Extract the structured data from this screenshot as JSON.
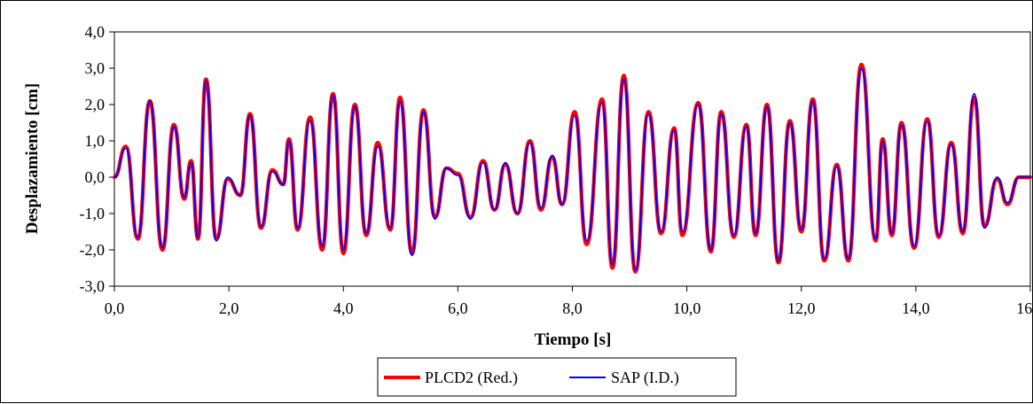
{
  "chart_data": {
    "type": "line",
    "xlabel": "Tiempo [s]",
    "ylabel": "Desplazamiento [cm]",
    "xlim": [
      0,
      16
    ],
    "ylim": [
      -3,
      4
    ],
    "x_ticks": [
      "0,0",
      "2,0",
      "4,0",
      "6,0",
      "8,0",
      "10,0",
      "12,0",
      "14,0",
      "16,0"
    ],
    "y_ticks": [
      "4,0",
      "3,0",
      "2,0",
      "1,0",
      "0,0",
      "-1,0",
      "-2,0",
      "-3,0"
    ],
    "grid": false,
    "legend_position": "bottom-center",
    "series": [
      {
        "name": "PLCD2 (Red.)",
        "color": "#ff0000",
        "x": [
          0.0,
          0.2,
          0.41,
          0.62,
          0.84,
          1.04,
          1.22,
          1.34,
          1.46,
          1.6,
          1.78,
          1.98,
          2.2,
          2.37,
          2.56,
          2.76,
          2.95,
          3.05,
          3.2,
          3.42,
          3.63,
          3.82,
          4.0,
          4.2,
          4.4,
          4.6,
          4.82,
          4.99,
          5.2,
          5.4,
          5.6,
          5.8,
          6.0,
          6.22,
          6.44,
          6.64,
          6.83,
          7.04,
          7.26,
          7.45,
          7.65,
          7.82,
          8.04,
          8.25,
          8.52,
          8.7,
          8.9,
          9.1,
          9.33,
          9.55,
          9.78,
          9.92,
          10.2,
          10.42,
          10.6,
          10.82,
          11.04,
          11.2,
          11.4,
          11.6,
          11.8,
          12.0,
          12.2,
          12.4,
          12.62,
          12.82,
          13.05,
          13.3,
          13.42,
          13.58,
          13.75,
          13.97,
          14.2,
          14.4,
          14.62,
          14.82,
          15.02,
          15.2,
          15.42,
          15.6,
          15.8,
          16.0
        ],
        "values": [
          0.0,
          0.85,
          -1.7,
          2.1,
          -2.0,
          1.45,
          -0.6,
          0.45,
          -1.7,
          2.7,
          -1.7,
          -0.05,
          -0.5,
          1.75,
          -1.4,
          0.2,
          -0.2,
          1.05,
          -1.45,
          1.65,
          -2.0,
          2.3,
          -2.1,
          2.0,
          -1.6,
          0.95,
          -1.45,
          2.2,
          -2.1,
          1.85,
          -1.1,
          0.25,
          0.1,
          -1.1,
          0.45,
          -0.9,
          0.35,
          -1.0,
          1.0,
          -0.9,
          0.55,
          -0.75,
          1.8,
          -1.85,
          2.15,
          -2.5,
          2.8,
          -2.6,
          1.8,
          -1.55,
          1.35,
          -1.6,
          2.05,
          -2.05,
          1.8,
          -1.65,
          1.45,
          -1.6,
          2.0,
          -2.35,
          1.55,
          -1.5,
          2.15,
          -2.3,
          0.35,
          -2.3,
          3.1,
          -1.75,
          1.05,
          -1.6,
          1.5,
          -1.95,
          1.6,
          -1.65,
          0.95,
          -1.55,
          2.2,
          -1.35,
          -0.05,
          -0.75,
          0.0,
          0.0
        ]
      },
      {
        "name": "SAP (I.D.)",
        "color": "#0000ff",
        "x": [
          0.0,
          0.2,
          0.41,
          0.62,
          0.84,
          1.04,
          1.22,
          1.34,
          1.46,
          1.6,
          1.78,
          1.98,
          2.2,
          2.37,
          2.56,
          2.76,
          2.95,
          3.05,
          3.2,
          3.42,
          3.63,
          3.82,
          4.0,
          4.2,
          4.4,
          4.6,
          4.82,
          4.99,
          5.2,
          5.4,
          5.6,
          5.8,
          6.0,
          6.22,
          6.44,
          6.64,
          6.83,
          7.04,
          7.26,
          7.45,
          7.65,
          7.82,
          8.04,
          8.25,
          8.52,
          8.7,
          8.9,
          9.1,
          9.33,
          9.55,
          9.78,
          9.92,
          10.2,
          10.42,
          10.6,
          10.82,
          11.04,
          11.2,
          11.4,
          11.6,
          11.8,
          12.0,
          12.2,
          12.4,
          12.62,
          12.82,
          13.05,
          13.3,
          13.42,
          13.58,
          13.75,
          13.97,
          14.2,
          14.4,
          14.62,
          14.82,
          15.02,
          15.2,
          15.42,
          15.6,
          15.8,
          16.0
        ],
        "values": [
          0.0,
          0.8,
          -1.65,
          2.1,
          -1.95,
          1.4,
          -0.55,
          0.4,
          -1.65,
          2.65,
          -1.75,
          -0.0,
          -0.5,
          1.7,
          -1.35,
          0.15,
          -0.2,
          1.0,
          -1.4,
          1.55,
          -1.9,
          2.25,
          -2.0,
          1.95,
          -1.55,
          0.85,
          -1.4,
          2.1,
          -2.15,
          1.8,
          -1.15,
          0.25,
          0.05,
          -1.15,
          0.4,
          -0.9,
          0.4,
          -1.0,
          0.95,
          -0.85,
          0.6,
          -0.75,
          1.7,
          -1.75,
          2.05,
          -2.4,
          2.7,
          -2.55,
          1.75,
          -1.5,
          1.3,
          -1.5,
          2.0,
          -2.0,
          1.75,
          -1.6,
          1.4,
          -1.55,
          1.95,
          -2.3,
          1.5,
          -1.45,
          2.1,
          -2.25,
          0.3,
          -2.25,
          3.0,
          -1.7,
          1.0,
          -1.55,
          1.45,
          -1.9,
          1.55,
          -1.6,
          0.9,
          -1.5,
          2.3,
          -1.4,
          -0.0,
          -0.7,
          0.0,
          0.0
        ]
      }
    ]
  }
}
